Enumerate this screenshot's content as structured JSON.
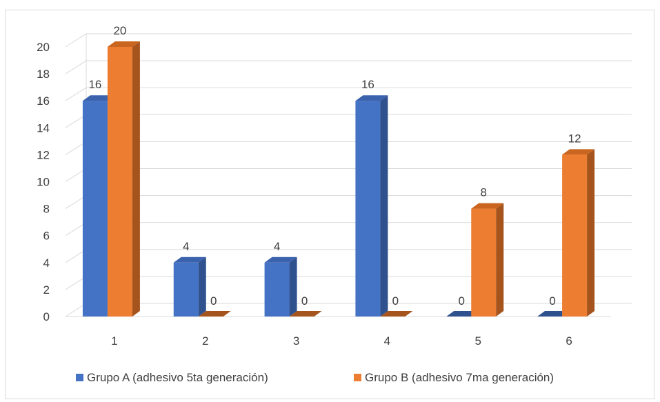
{
  "chart_data": {
    "type": "bar",
    "title": "",
    "xlabel": "",
    "ylabel": "",
    "categories": [
      "1",
      "2",
      "3",
      "4",
      "5",
      "6"
    ],
    "series": [
      {
        "name": "Grupo A (adhesivo 5ta generación)",
        "values": [
          16,
          4,
          4,
          16,
          0,
          0
        ],
        "color": "#4472c4",
        "side_color": "#2f528f",
        "top_color": "#3a62ad"
      },
      {
        "name": "Grupo B (adhesivo 7ma generación)",
        "values": [
          20,
          0,
          0,
          0,
          8,
          12
        ],
        "color": "#ed7d31",
        "side_color": "#a5541d",
        "top_color": "#c9651f"
      }
    ],
    "ylim": [
      0,
      20
    ],
    "yticks": [
      "0",
      "2",
      "4",
      "6",
      "8",
      "10",
      "12",
      "14",
      "16",
      "18",
      "20"
    ],
    "grid": true,
    "data_labels": true,
    "legend_position": "bottom",
    "style": "3d-column"
  }
}
